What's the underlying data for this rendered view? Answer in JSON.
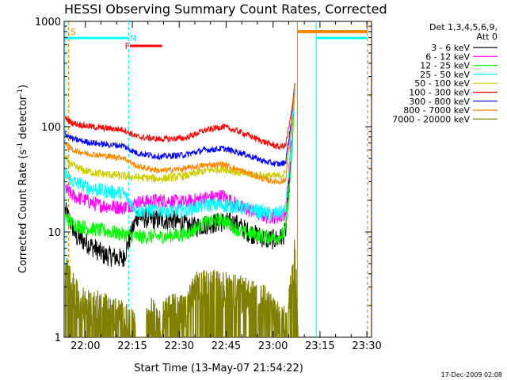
{
  "chart_data": {
    "type": "line",
    "title": "HESSI Observing Summary Count Rates, Corrected",
    "xlabel": "Start Time (13-May-07 21:54:22)",
    "ylabel_parts": {
      "main": "Corrected Count Rate (s",
      "exp": "-1",
      "rest": " detector",
      "exp2": "-1",
      "close": ")"
    },
    "y_scale": "log",
    "ylim": [
      1,
      1000
    ],
    "xlim_minutes": [
      -1.6,
      33.6
    ],
    "x_ticks": [
      {
        "t": 0,
        "label": "22:00"
      },
      {
        "t": 15,
        "label": "22:15"
      },
      {
        "t": 30,
        "label": "22:30"
      },
      {
        "t": 45,
        "label": "22:45"
      },
      {
        "t": 60,
        "label": "23:00"
      },
      {
        "t": 75,
        "label": "23:15"
      },
      {
        "t": 90,
        "label": "23:30"
      }
    ],
    "y_ticks": [
      {
        "v": 1,
        "label": "1"
      },
      {
        "v": 10,
        "label": "10"
      },
      {
        "v": 100,
        "label": "100"
      },
      {
        "v": 1000,
        "label": "1000"
      }
    ],
    "x_unit_note": "x values are minutes after 22:00",
    "legend_title": [
      "Det 1,3,4,5,6,9,",
      "Att 0"
    ],
    "series": [
      {
        "name": "3 - 6 keV",
        "color": "#000000",
        "values": [
          [
            -6.5,
            16
          ],
          [
            -5,
            13
          ],
          [
            -3,
            9
          ],
          [
            0,
            8
          ],
          [
            3,
            7
          ],
          [
            6,
            6
          ],
          [
            9,
            5.8
          ],
          [
            12,
            5.5
          ],
          [
            16.5,
            14
          ],
          [
            22,
            13
          ],
          [
            28,
            13
          ],
          [
            34,
            11
          ],
          [
            40,
            12
          ],
          [
            44,
            12.5
          ],
          [
            48,
            12
          ],
          [
            52,
            10
          ],
          [
            58,
            8.5
          ],
          [
            62,
            8.5
          ],
          [
            64,
            10
          ],
          [
            66,
            60
          ],
          [
            67,
            250
          ]
        ]
      },
      {
        "name": "6 - 12 keV",
        "color": "#ff00ff",
        "values": [
          [
            -6.5,
            26
          ],
          [
            -4,
            22
          ],
          [
            0,
            20
          ],
          [
            4,
            18
          ],
          [
            8,
            17.5
          ],
          [
            12,
            17
          ],
          [
            16.5,
            19
          ],
          [
            24,
            20
          ],
          [
            32,
            19
          ],
          [
            38,
            21
          ],
          [
            44,
            22
          ],
          [
            50,
            17
          ],
          [
            58,
            14
          ],
          [
            62,
            14
          ],
          [
            64,
            15
          ],
          [
            66,
            80
          ],
          [
            67,
            260
          ]
        ]
      },
      {
        "name": "12 - 25 keV",
        "color": "#00ff00",
        "values": [
          [
            -6.5,
            14
          ],
          [
            -4,
            12
          ],
          [
            0,
            11
          ],
          [
            4,
            10.5
          ],
          [
            8,
            10
          ],
          [
            12,
            9.5
          ],
          [
            16.5,
            9
          ],
          [
            24,
            9
          ],
          [
            32,
            9.5
          ],
          [
            38,
            12
          ],
          [
            44,
            13
          ],
          [
            50,
            10
          ],
          [
            58,
            9
          ],
          [
            62,
            9
          ],
          [
            64,
            10
          ],
          [
            66,
            50
          ],
          [
            67,
            240
          ]
        ]
      },
      {
        "name": "25 - 50 keV",
        "color": "#00ffff",
        "values": [
          [
            -6.5,
            36
          ],
          [
            -4,
            30
          ],
          [
            0,
            27
          ],
          [
            4,
            25
          ],
          [
            8,
            24
          ],
          [
            12,
            23.5
          ],
          [
            16.5,
            16
          ],
          [
            24,
            16
          ],
          [
            32,
            16
          ],
          [
            38,
            18
          ],
          [
            44,
            18
          ],
          [
            50,
            17
          ],
          [
            58,
            15
          ],
          [
            62,
            15
          ],
          [
            64,
            16
          ],
          [
            66,
            70
          ],
          [
            67,
            250
          ]
        ]
      },
      {
        "name": "50 - 100 keV",
        "color": "#cccc00",
        "values": [
          [
            -6.5,
            50
          ],
          [
            -4,
            42
          ],
          [
            0,
            38
          ],
          [
            4,
            36
          ],
          [
            8,
            35
          ],
          [
            12,
            34
          ],
          [
            16.5,
            33
          ],
          [
            24,
            32
          ],
          [
            32,
            34
          ],
          [
            38,
            38
          ],
          [
            44,
            40
          ],
          [
            50,
            36
          ],
          [
            58,
            34
          ],
          [
            62,
            34
          ],
          [
            64,
            36
          ],
          [
            66,
            100
          ],
          [
            67,
            260
          ]
        ]
      },
      {
        "name": "100 - 300 keV",
        "color": "#ff0000",
        "values": [
          [
            -6.5,
            120
          ],
          [
            -4,
            108
          ],
          [
            0,
            102
          ],
          [
            4,
            98
          ],
          [
            8,
            96
          ],
          [
            12,
            94
          ],
          [
            16.5,
            80
          ],
          [
            24,
            76
          ],
          [
            32,
            78
          ],
          [
            38,
            92
          ],
          [
            44,
            100
          ],
          [
            50,
            88
          ],
          [
            58,
            70
          ],
          [
            62,
            64
          ],
          [
            64,
            66
          ],
          [
            66,
            140
          ],
          [
            67,
            270
          ]
        ]
      },
      {
        "name": "300 - 800 keV",
        "color": "#0000ff",
        "values": [
          [
            -6.5,
            86
          ],
          [
            -4,
            76
          ],
          [
            0,
            72
          ],
          [
            4,
            69
          ],
          [
            8,
            67
          ],
          [
            12,
            66
          ],
          [
            16.5,
            56
          ],
          [
            24,
            52
          ],
          [
            32,
            54
          ],
          [
            38,
            60
          ],
          [
            44,
            62
          ],
          [
            50,
            56
          ],
          [
            58,
            46
          ],
          [
            62,
            44
          ],
          [
            64,
            46
          ],
          [
            66,
            120
          ],
          [
            67,
            265
          ]
        ]
      },
      {
        "name": "800 - 7000 keV",
        "color": "#ff8800",
        "values": [
          [
            -6.5,
            68
          ],
          [
            -4,
            60
          ],
          [
            0,
            56
          ],
          [
            4,
            54
          ],
          [
            8,
            52
          ],
          [
            12,
            51
          ],
          [
            16.5,
            42
          ],
          [
            24,
            38
          ],
          [
            32,
            40
          ],
          [
            38,
            43
          ],
          [
            44,
            44
          ],
          [
            50,
            38
          ],
          [
            58,
            31
          ],
          [
            62,
            30
          ],
          [
            64,
            31
          ],
          [
            66,
            110
          ],
          [
            67,
            262
          ]
        ]
      },
      {
        "name": "7000 - 20000 keV",
        "color": "#808000",
        "values": [
          [
            -6.5,
            4.5
          ],
          [
            -4,
            3
          ],
          [
            -2,
            2.3
          ],
          [
            0,
            2
          ],
          [
            4,
            2
          ],
          [
            8,
            1.8
          ],
          [
            12,
            1.6
          ],
          [
            16.5,
            1.2
          ],
          [
            20,
            1.8
          ],
          [
            24,
            1.5
          ],
          [
            28,
            2
          ],
          [
            32,
            1.8
          ],
          [
            35,
            3
          ],
          [
            40,
            3.2
          ],
          [
            46,
            3
          ],
          [
            52,
            2.6
          ],
          [
            58,
            2.2
          ],
          [
            62,
            1.5
          ],
          [
            64,
            1.4
          ],
          [
            66,
            4
          ],
          [
            67,
            8
          ],
          [
            68,
            1
          ]
        ]
      }
    ],
    "flags": [
      {
        "label": "S",
        "color": "#ff8800"
      },
      {
        "label": "N",
        "color": "#00ffff"
      },
      {
        "label": "F",
        "color": "#ff0000"
      }
    ]
  },
  "timestamp": "17-Dec-2009 02:08"
}
